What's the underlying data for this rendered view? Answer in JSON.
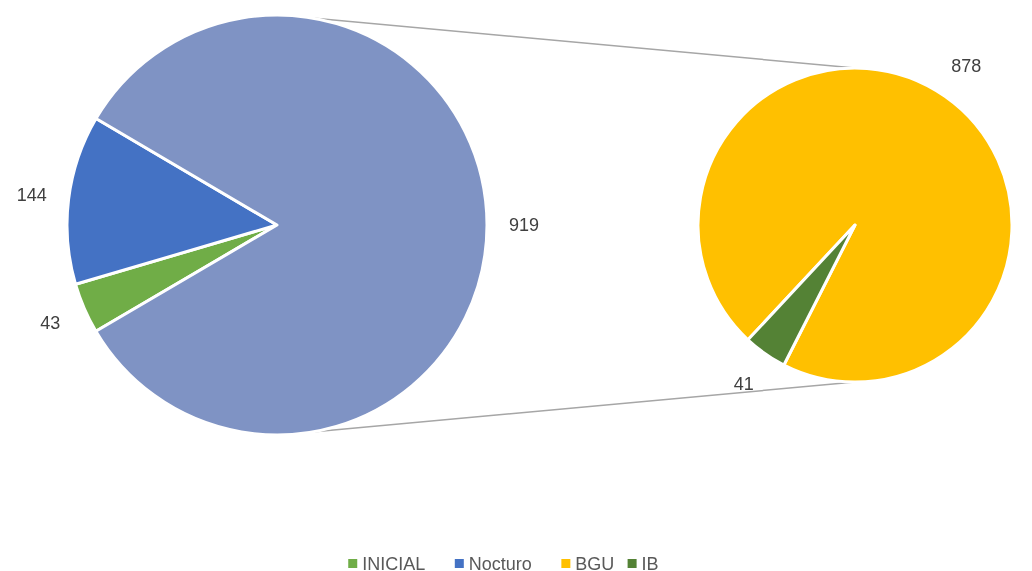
{
  "chart_data": [
    {
      "type": "pie",
      "categories": [
        "INICIAL",
        "Nocturo",
        null
      ],
      "values": [
        43,
        144,
        919
      ],
      "colors": [
        "#70ad47",
        "#4472c4",
        "#7f93c4"
      ],
      "data_labels": true,
      "legend": "bottom"
    },
    {
      "type": "pie",
      "categories": [
        "BGU",
        "IB"
      ],
      "values": [
        878,
        41
      ],
      "colors": [
        "#ffc000",
        "#548235"
      ],
      "data_labels": true,
      "legend": "bottom"
    }
  ]
}
